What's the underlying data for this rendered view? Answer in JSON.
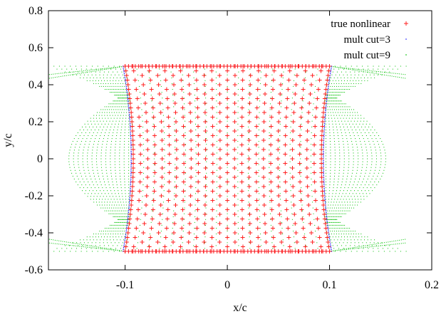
{
  "chart_data": {
    "type": "scatter",
    "title": "",
    "xlabel": "x/c",
    "ylabel": "y/c",
    "xlim": [
      -0.175,
      0.2
    ],
    "ylim": [
      -0.6,
      0.8
    ],
    "x_ticks": [
      -0.1,
      0,
      0.1,
      0.2
    ],
    "x_tick_labels": [
      "-0.1",
      "0",
      "0.1",
      "0.2"
    ],
    "y_ticks": [
      -0.6,
      -0.4,
      -0.2,
      0,
      0.2,
      0.4,
      0.6,
      0.8
    ],
    "y_tick_labels": [
      "-0.6",
      "-0.4",
      "-0.2",
      "0",
      "0.2",
      "0.4",
      "0.6",
      "0.8"
    ],
    "grid": false,
    "legend_position": "top-right",
    "series": [
      {
        "name": "mult cut=9",
        "color": "#00c000",
        "marker": "dot",
        "description_points": [
          {
            "x": -0.1,
            "y": 0.5
          },
          {
            "x": -0.175,
            "y": 0.455
          },
          {
            "x": -0.1,
            "y": -0.5
          },
          {
            "x": -0.175,
            "y": -0.455
          },
          {
            "x": 0.1,
            "y": 0.5
          },
          {
            "x": 0.173,
            "y": 0.455
          },
          {
            "x": 0.1,
            "y": -0.5
          },
          {
            "x": 0.173,
            "y": -0.455
          },
          {
            "x": -0.155,
            "y": 0.0
          },
          {
            "x": 0.155,
            "y": 0.0
          }
        ]
      },
      {
        "name": "mult cut=3",
        "color": "#2020ff",
        "marker": "dot",
        "description_points": [
          {
            "x": -0.1,
            "y": 0.5
          },
          {
            "x": 0.1,
            "y": 0.5
          },
          {
            "x": -0.1,
            "y": -0.5
          },
          {
            "x": 0.1,
            "y": -0.5
          },
          {
            "x": -0.093,
            "y": 0.0
          },
          {
            "x": 0.093,
            "y": 0.0
          }
        ]
      },
      {
        "name": "true nonlinear",
        "color": "#ff2020",
        "marker": "plus",
        "description_points": [
          {
            "x": -0.1,
            "y": 0.5
          },
          {
            "x": 0.1,
            "y": 0.5
          },
          {
            "x": -0.1,
            "y": -0.5
          },
          {
            "x": 0.1,
            "y": -0.5
          },
          {
            "x": -0.092,
            "y": 0.0
          },
          {
            "x": 0.092,
            "y": 0.0
          }
        ]
      }
    ]
  }
}
